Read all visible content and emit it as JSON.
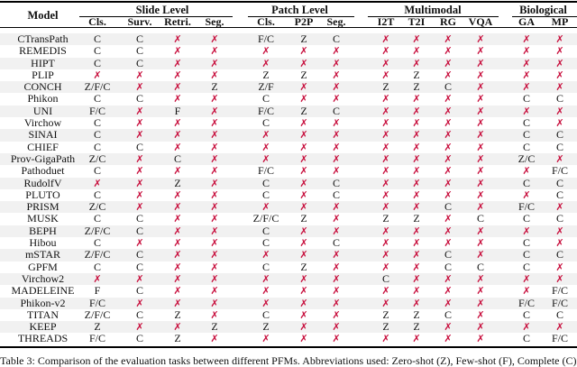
{
  "table": {
    "model_header": "Model",
    "groups": [
      {
        "label": "Slide Level",
        "columns": [
          "Cls.",
          "Surv.",
          "Retri.",
          "Seg."
        ]
      },
      {
        "label": "Patch Level",
        "columns": [
          "Cls.",
          "P2P",
          "Seg."
        ]
      },
      {
        "label": "Multimodal",
        "columns": [
          "I2T",
          "T2I",
          "RG",
          "VQA"
        ]
      },
      {
        "label": "Biological",
        "columns": [
          "GA",
          "MP"
        ]
      }
    ],
    "no_symbol": "✗",
    "rows": [
      {
        "model": "CTransPath",
        "values": [
          "C",
          "C",
          "✗",
          "✗",
          "F/C",
          "Z",
          "C",
          "✗",
          "✗",
          "✗",
          "✗",
          "✗",
          "✗"
        ]
      },
      {
        "model": "REMEDIS",
        "values": [
          "C",
          "C",
          "✗",
          "✗",
          "✗",
          "✗",
          "✗",
          "✗",
          "✗",
          "✗",
          "✗",
          "✗",
          "✗"
        ]
      },
      {
        "model": "HIPT",
        "values": [
          "C",
          "C",
          "✗",
          "✗",
          "✗",
          "✗",
          "✗",
          "✗",
          "✗",
          "✗",
          "✗",
          "✗",
          "✗"
        ]
      },
      {
        "model": "PLIP",
        "values": [
          "✗",
          "✗",
          "✗",
          "✗",
          "Z",
          "Z",
          "✗",
          "✗",
          "Z",
          "✗",
          "✗",
          "✗",
          "✗"
        ]
      },
      {
        "model": "CONCH",
        "values": [
          "Z/F/C",
          "✗",
          "✗",
          "Z",
          "Z/F",
          "✗",
          "✗",
          "Z",
          "Z",
          "C",
          "✗",
          "✗",
          "✗"
        ]
      },
      {
        "model": "Phikon",
        "values": [
          "C",
          "C",
          "✗",
          "✗",
          "C",
          "✗",
          "✗",
          "✗",
          "✗",
          "✗",
          "✗",
          "C",
          "C"
        ]
      },
      {
        "model": "UNI",
        "values": [
          "F/C",
          "✗",
          "F",
          "✗",
          "F/C",
          "Z",
          "C",
          "✗",
          "✗",
          "✗",
          "✗",
          "✗",
          "✗"
        ]
      },
      {
        "model": "Virchow",
        "values": [
          "C",
          "✗",
          "✗",
          "✗",
          "C",
          "✗",
          "✗",
          "✗",
          "✗",
          "✗",
          "✗",
          "C",
          "✗"
        ]
      },
      {
        "model": "SINAI",
        "values": [
          "C",
          "✗",
          "✗",
          "✗",
          "✗",
          "✗",
          "✗",
          "✗",
          "✗",
          "✗",
          "✗",
          "C",
          "C"
        ]
      },
      {
        "model": "CHIEF",
        "values": [
          "C",
          "C",
          "✗",
          "✗",
          "✗",
          "✗",
          "✗",
          "✗",
          "✗",
          "✗",
          "✗",
          "C",
          "C"
        ]
      },
      {
        "model": "Prov-GigaPath",
        "values": [
          "Z/C",
          "✗",
          "C",
          "✗",
          "✗",
          "✗",
          "✗",
          "✗",
          "✗",
          "✗",
          "✗",
          "Z/C",
          "✗"
        ]
      },
      {
        "model": "Pathoduet",
        "values": [
          "C",
          "✗",
          "✗",
          "✗",
          "F/C",
          "✗",
          "✗",
          "✗",
          "✗",
          "✗",
          "✗",
          "✗",
          "F/C"
        ]
      },
      {
        "model": "RudolfV",
        "values": [
          "✗",
          "✗",
          "Z",
          "✗",
          "C",
          "✗",
          "C",
          "✗",
          "✗",
          "✗",
          "✗",
          "C",
          "C"
        ]
      },
      {
        "model": "PLUTO",
        "values": [
          "C",
          "✗",
          "✗",
          "✗",
          "C",
          "✗",
          "C",
          "✗",
          "✗",
          "✗",
          "✗",
          "✗",
          "C"
        ]
      },
      {
        "model": "PRISM",
        "values": [
          "Z/C",
          "✗",
          "✗",
          "✗",
          "✗",
          "✗",
          "✗",
          "✗",
          "✗",
          "C",
          "✗",
          "F/C",
          "✗"
        ]
      },
      {
        "model": "MUSK",
        "values": [
          "C",
          "C",
          "✗",
          "✗",
          "Z/F/C",
          "Z",
          "✗",
          "Z",
          "Z",
          "✗",
          "C",
          "C",
          "C"
        ]
      },
      {
        "model": "BEPH",
        "values": [
          "Z/F/C",
          "C",
          "✗",
          "✗",
          "C",
          "✗",
          "✗",
          "✗",
          "✗",
          "✗",
          "✗",
          "✗",
          "✗"
        ]
      },
      {
        "model": "Hibou",
        "values": [
          "C",
          "✗",
          "✗",
          "✗",
          "C",
          "✗",
          "C",
          "✗",
          "✗",
          "✗",
          "✗",
          "C",
          "✗"
        ]
      },
      {
        "model": "mSTAR",
        "values": [
          "Z/F/C",
          "C",
          "✗",
          "✗",
          "✗",
          "✗",
          "✗",
          "✗",
          "✗",
          "C",
          "✗",
          "C",
          "C"
        ]
      },
      {
        "model": "GPFM",
        "values": [
          "C",
          "C",
          "✗",
          "✗",
          "C",
          "Z",
          "✗",
          "✗",
          "✗",
          "C",
          "C",
          "C",
          "✗"
        ]
      },
      {
        "model": "Virchow2",
        "values": [
          "✗",
          "✗",
          "✗",
          "✗",
          "✗",
          "✗",
          "✗",
          "C",
          "✗",
          "✗",
          "✗",
          "✗",
          "✗"
        ]
      },
      {
        "model": "MADELEINE",
        "values": [
          "F",
          "C",
          "✗",
          "✗",
          "✗",
          "✗",
          "✗",
          "✗",
          "✗",
          "✗",
          "✗",
          "✗",
          "F/C"
        ]
      },
      {
        "model": "Phikon-v2",
        "values": [
          "F/C",
          "✗",
          "✗",
          "✗",
          "✗",
          "✗",
          "✗",
          "✗",
          "✗",
          "✗",
          "✗",
          "F/C",
          "F/C"
        ]
      },
      {
        "model": "TITAN",
        "values": [
          "Z/F/C",
          "C",
          "Z",
          "✗",
          "C",
          "✗",
          "✗",
          "Z",
          "Z",
          "C",
          "✗",
          "C",
          "C"
        ]
      },
      {
        "model": "KEEP",
        "values": [
          "Z",
          "✗",
          "✗",
          "Z",
          "Z",
          "✗",
          "✗",
          "Z",
          "Z",
          "✗",
          "✗",
          "✗",
          "✗"
        ]
      },
      {
        "model": "THREADS",
        "values": [
          "F/C",
          "C",
          "Z",
          "✗",
          "✗",
          "✗",
          "✗",
          "✗",
          "✗",
          "✗",
          "✗",
          "C",
          "F/C"
        ]
      }
    ]
  },
  "caption": "Table 3: Comparison of the evaluation tasks between different PFMs. Abbreviations used: Zero-shot (Z), Few-shot (F), Complete (C)",
  "colors": {
    "no_mark": "#c8103e",
    "row_shade": "#f1f1f1"
  }
}
